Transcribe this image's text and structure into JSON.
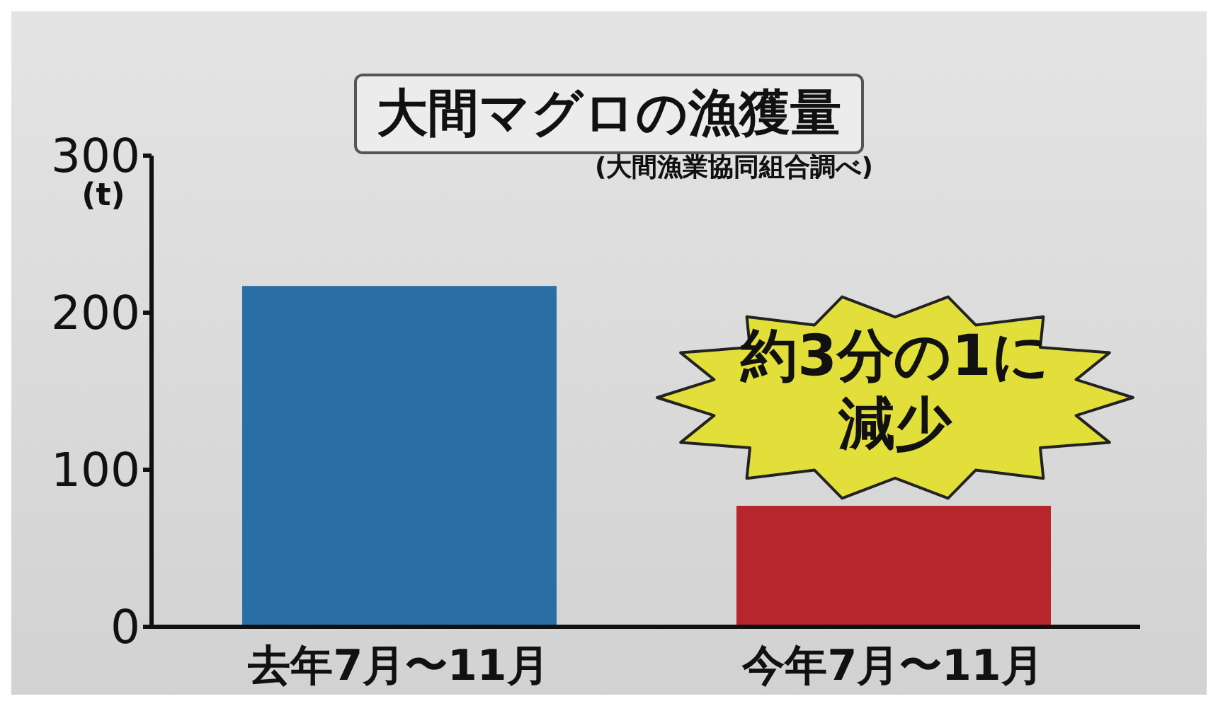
{
  "chart_data": {
    "type": "bar",
    "title": "大間マグロの漁獲量",
    "ylabel": "(t)",
    "annotations": [
      "(大間漁業協同組合調べ)",
      "約3分の1に減少"
    ],
    "categories": [
      "去年7月〜11月",
      "今年7月〜11月"
    ],
    "values": [
      217,
      77
    ],
    "colors": [
      "#2a6ea6",
      "#b8262d"
    ],
    "ylim": [
      0,
      300
    ],
    "yticks": [
      0,
      100,
      200,
      300
    ],
    "grid": false,
    "legend": false
  }
}
